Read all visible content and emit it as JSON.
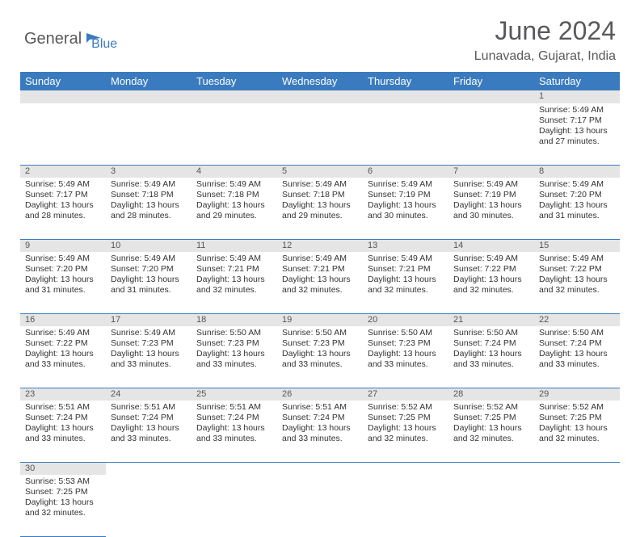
{
  "brand": {
    "part1": "General",
    "part2": "Blue"
  },
  "title": "June 2024",
  "location": "Lunavada, Gujarat, India",
  "colors": {
    "header_bg": "#3a7bbf",
    "header_text": "#ffffff",
    "daynum_bg": "#e5e5e5",
    "row_border": "#3a7bbf",
    "title_color": "#58595b",
    "logo_gray": "#58595b",
    "logo_blue": "#3a7bbf"
  },
  "day_headers": [
    "Sunday",
    "Monday",
    "Tuesday",
    "Wednesday",
    "Thursday",
    "Friday",
    "Saturday"
  ],
  "weeks": [
    [
      null,
      null,
      null,
      null,
      null,
      null,
      {
        "n": "1",
        "sr": "5:49 AM",
        "ss": "7:17 PM",
        "dl": "13 hours and 27 minutes."
      }
    ],
    [
      {
        "n": "2",
        "sr": "5:49 AM",
        "ss": "7:17 PM",
        "dl": "13 hours and 28 minutes."
      },
      {
        "n": "3",
        "sr": "5:49 AM",
        "ss": "7:18 PM",
        "dl": "13 hours and 28 minutes."
      },
      {
        "n": "4",
        "sr": "5:49 AM",
        "ss": "7:18 PM",
        "dl": "13 hours and 29 minutes."
      },
      {
        "n": "5",
        "sr": "5:49 AM",
        "ss": "7:18 PM",
        "dl": "13 hours and 29 minutes."
      },
      {
        "n": "6",
        "sr": "5:49 AM",
        "ss": "7:19 PM",
        "dl": "13 hours and 30 minutes."
      },
      {
        "n": "7",
        "sr": "5:49 AM",
        "ss": "7:19 PM",
        "dl": "13 hours and 30 minutes."
      },
      {
        "n": "8",
        "sr": "5:49 AM",
        "ss": "7:20 PM",
        "dl": "13 hours and 31 minutes."
      }
    ],
    [
      {
        "n": "9",
        "sr": "5:49 AM",
        "ss": "7:20 PM",
        "dl": "13 hours and 31 minutes."
      },
      {
        "n": "10",
        "sr": "5:49 AM",
        "ss": "7:20 PM",
        "dl": "13 hours and 31 minutes."
      },
      {
        "n": "11",
        "sr": "5:49 AM",
        "ss": "7:21 PM",
        "dl": "13 hours and 32 minutes."
      },
      {
        "n": "12",
        "sr": "5:49 AM",
        "ss": "7:21 PM",
        "dl": "13 hours and 32 minutes."
      },
      {
        "n": "13",
        "sr": "5:49 AM",
        "ss": "7:21 PM",
        "dl": "13 hours and 32 minutes."
      },
      {
        "n": "14",
        "sr": "5:49 AM",
        "ss": "7:22 PM",
        "dl": "13 hours and 32 minutes."
      },
      {
        "n": "15",
        "sr": "5:49 AM",
        "ss": "7:22 PM",
        "dl": "13 hours and 32 minutes."
      }
    ],
    [
      {
        "n": "16",
        "sr": "5:49 AM",
        "ss": "7:22 PM",
        "dl": "13 hours and 33 minutes."
      },
      {
        "n": "17",
        "sr": "5:49 AM",
        "ss": "7:23 PM",
        "dl": "13 hours and 33 minutes."
      },
      {
        "n": "18",
        "sr": "5:50 AM",
        "ss": "7:23 PM",
        "dl": "13 hours and 33 minutes."
      },
      {
        "n": "19",
        "sr": "5:50 AM",
        "ss": "7:23 PM",
        "dl": "13 hours and 33 minutes."
      },
      {
        "n": "20",
        "sr": "5:50 AM",
        "ss": "7:23 PM",
        "dl": "13 hours and 33 minutes."
      },
      {
        "n": "21",
        "sr": "5:50 AM",
        "ss": "7:24 PM",
        "dl": "13 hours and 33 minutes."
      },
      {
        "n": "22",
        "sr": "5:50 AM",
        "ss": "7:24 PM",
        "dl": "13 hours and 33 minutes."
      }
    ],
    [
      {
        "n": "23",
        "sr": "5:51 AM",
        "ss": "7:24 PM",
        "dl": "13 hours and 33 minutes."
      },
      {
        "n": "24",
        "sr": "5:51 AM",
        "ss": "7:24 PM",
        "dl": "13 hours and 33 minutes."
      },
      {
        "n": "25",
        "sr": "5:51 AM",
        "ss": "7:24 PM",
        "dl": "13 hours and 33 minutes."
      },
      {
        "n": "26",
        "sr": "5:51 AM",
        "ss": "7:24 PM",
        "dl": "13 hours and 33 minutes."
      },
      {
        "n": "27",
        "sr": "5:52 AM",
        "ss": "7:25 PM",
        "dl": "13 hours and 32 minutes."
      },
      {
        "n": "28",
        "sr": "5:52 AM",
        "ss": "7:25 PM",
        "dl": "13 hours and 32 minutes."
      },
      {
        "n": "29",
        "sr": "5:52 AM",
        "ss": "7:25 PM",
        "dl": "13 hours and 32 minutes."
      }
    ],
    [
      {
        "n": "30",
        "sr": "5:53 AM",
        "ss": "7:25 PM",
        "dl": "13 hours and 32 minutes."
      },
      null,
      null,
      null,
      null,
      null,
      null
    ]
  ],
  "labels": {
    "sunrise": "Sunrise:",
    "sunset": "Sunset:",
    "daylight": "Daylight:"
  }
}
